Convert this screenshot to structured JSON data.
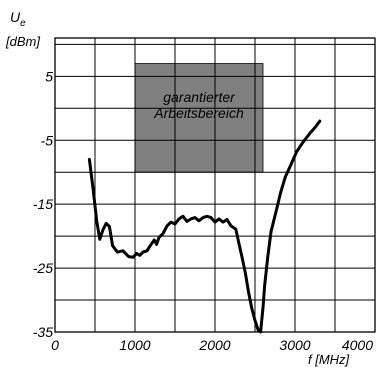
{
  "chart_data": {
    "type": "line",
    "title": "",
    "ylabel_symbol": "U",
    "ylabel_subscript": "e",
    "ylabel_unit": "[dBm]",
    "xlabel": "f [MHz]",
    "xlim": [
      0,
      4000
    ],
    "ylim": [
      -35,
      11
    ],
    "grid": true,
    "x_ticks": [
      0,
      500,
      1000,
      1500,
      2000,
      2500,
      3000,
      3500,
      4000
    ],
    "x_tick_labels": [
      "0",
      "",
      "1000",
      "",
      "2000",
      "",
      "3000",
      "",
      "4000"
    ],
    "y_ticks": [
      -35,
      -30,
      -25,
      -20,
      -15,
      -10,
      -5,
      0,
      5,
      10
    ],
    "y_tick_labels": [
      "-35",
      "",
      "-25",
      "",
      "-15",
      "",
      "-5",
      "",
      "5",
      ""
    ],
    "region": {
      "label_line1": "garantierter",
      "label_line2": "Arbeitsbereich",
      "x": [
        1000,
        2600
      ],
      "y": [
        -10,
        7
      ],
      "color": "#808080"
    },
    "series": [
      {
        "color": "#000000",
        "points": [
          [
            430,
            -8
          ],
          [
            480,
            -13
          ],
          [
            520,
            -17.5
          ],
          [
            560,
            -20.5
          ],
          [
            600,
            -19
          ],
          [
            640,
            -18
          ],
          [
            680,
            -18.5
          ],
          [
            720,
            -21.5
          ],
          [
            780,
            -22.5
          ],
          [
            850,
            -22.3
          ],
          [
            920,
            -23.2
          ],
          [
            980,
            -23.3
          ],
          [
            1020,
            -22.7
          ],
          [
            1060,
            -23
          ],
          [
            1100,
            -22.5
          ],
          [
            1150,
            -22.3
          ],
          [
            1190,
            -21.5
          ],
          [
            1240,
            -20.6
          ],
          [
            1270,
            -21.3
          ],
          [
            1300,
            -20.2
          ],
          [
            1350,
            -19.6
          ],
          [
            1400,
            -18.4
          ],
          [
            1450,
            -17.8
          ],
          [
            1500,
            -18.1
          ],
          [
            1550,
            -17.3
          ],
          [
            1600,
            -16.9
          ],
          [
            1650,
            -17.7
          ],
          [
            1700,
            -17.3
          ],
          [
            1750,
            -17.1
          ],
          [
            1800,
            -17.6
          ],
          [
            1850,
            -17.1
          ],
          [
            1900,
            -16.9
          ],
          [
            1950,
            -17.1
          ],
          [
            2000,
            -17.8
          ],
          [
            2050,
            -17.3
          ],
          [
            2100,
            -17.8
          ],
          [
            2150,
            -17.4
          ],
          [
            2200,
            -18.4
          ],
          [
            2260,
            -18.9
          ],
          [
            2300,
            -21.2
          ],
          [
            2340,
            -23.4
          ],
          [
            2380,
            -25.8
          ],
          [
            2420,
            -28.8
          ],
          [
            2460,
            -31.3
          ],
          [
            2500,
            -33.2
          ],
          [
            2540,
            -34.7
          ],
          [
            2570,
            -35
          ],
          [
            2600,
            -31.2
          ],
          [
            2620,
            -27.8
          ],
          [
            2660,
            -23.2
          ],
          [
            2700,
            -19.3
          ],
          [
            2760,
            -16.3
          ],
          [
            2820,
            -13.2
          ],
          [
            2880,
            -10.7
          ],
          [
            2950,
            -8.8
          ],
          [
            3020,
            -6.8
          ],
          [
            3100,
            -5.3
          ],
          [
            3180,
            -4
          ],
          [
            3250,
            -3
          ],
          [
            3310,
            -2
          ]
        ]
      }
    ]
  }
}
